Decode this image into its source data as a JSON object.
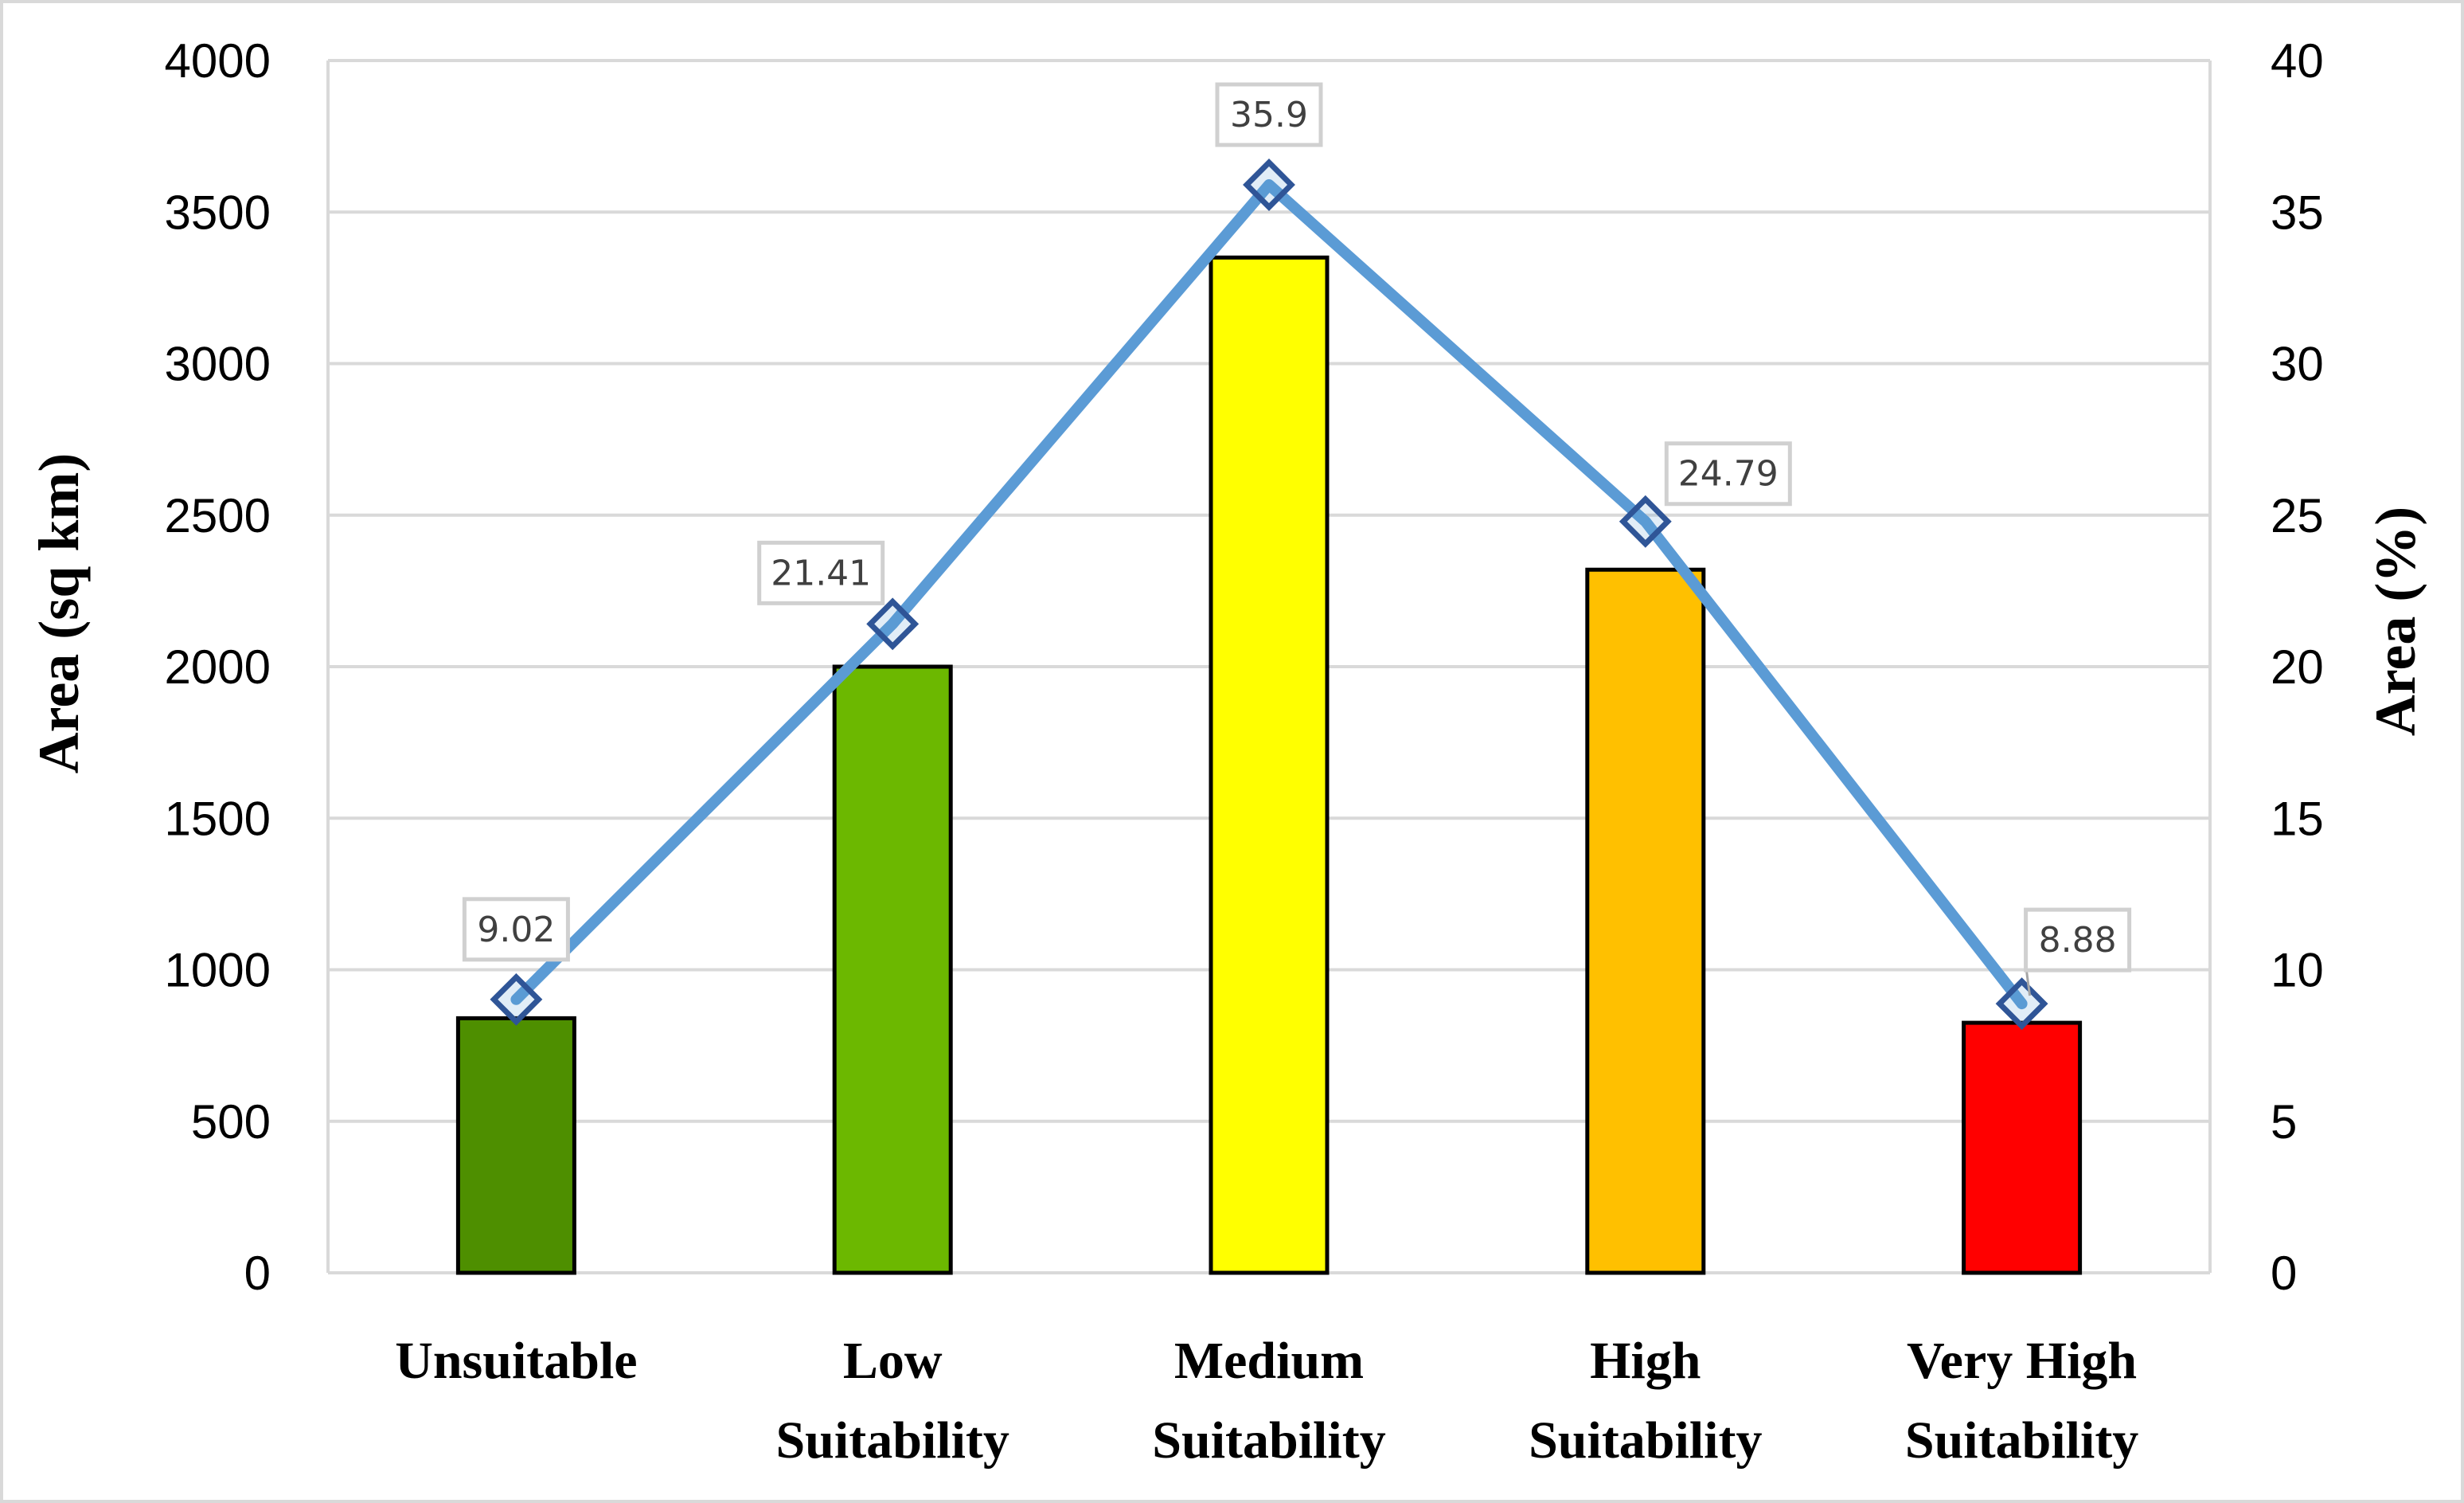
{
  "chart_data": {
    "type": "bar+line",
    "title": "",
    "categories": [
      [
        "Unsuitable"
      ],
      [
        "Low",
        "Suitability"
      ],
      [
        "Medium",
        "Suitability"
      ],
      [
        "High",
        "Suitability"
      ],
      [
        "Very High",
        "Suitability"
      ]
    ],
    "y_left": {
      "label": "Area (sq km)",
      "min": 0,
      "max": 4000,
      "step": 500,
      "ticks": [
        "0",
        "500",
        "1000",
        "1500",
        "2000",
        "2500",
        "3000",
        "3500",
        "4000"
      ]
    },
    "y_right": {
      "label": "Area (%)",
      "min": 0,
      "max": 40,
      "step": 5,
      "ticks": [
        "0",
        "5",
        "10",
        "15",
        "20",
        "25",
        "30",
        "35",
        "40"
      ]
    },
    "grid": true,
    "series": [
      {
        "name": "Area (sq km)",
        "type": "bar",
        "axis": "left",
        "values": [
          840,
          2000,
          3350,
          2320,
          825
        ],
        "colors": [
          "#4e8f00",
          "#6cb800",
          "#ffff00",
          "#ffc000",
          "#ff0000"
        ]
      },
      {
        "name": "Area (%)",
        "type": "line",
        "axis": "right",
        "values": [
          9.02,
          21.41,
          35.9,
          24.79,
          8.88
        ],
        "labels": [
          "9.02",
          "21.41",
          "35.9",
          "24.79",
          "8.88"
        ],
        "color": "#5b9bd5",
        "marker_color": "#2f5597"
      }
    ]
  }
}
